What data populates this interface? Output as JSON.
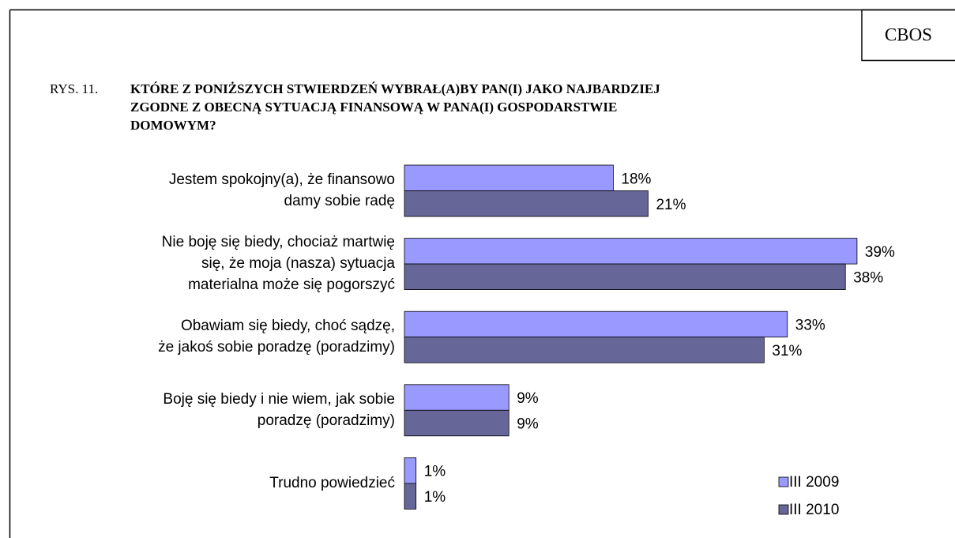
{
  "chart_data": {
    "type": "bar",
    "orientation": "horizontal",
    "source": "CBOS",
    "figure_label": "RYS. 11.",
    "title": "KTÓRE Z PONIŻSZYCH STWIERDZEŃ WYBRAŁ(A)BY PAN(I) JAKO NAJBARDZIEJ\nZGODNE Z OBECNĄ SYTUACJĄ FINANSOWĄ W PANA(I) GOSPODARSTWIE\nDOMOWYM?",
    "categories": [
      "Jestem spokojny(a), że finansowo\ndamy sobie radę",
      "Nie boję się biedy, chociaż martwię\nsię, że moja (nasza) sytuacja\nmaterialna może się pogorszyć",
      "Obawiam się biedy, choć sądzę,\nże jakoś sobie poradzę (poradzimy)",
      "Boję się biedy i nie wiem, jak sobie\nporadzę (poradzimy)",
      "Trudno powiedzieć"
    ],
    "series": [
      {
        "name": "III 2009",
        "color": "#9999ff",
        "values": [
          18,
          39,
          33,
          9,
          1
        ],
        "value_labels": [
          "18%",
          "39%",
          "33%",
          "9%",
          "1%"
        ]
      },
      {
        "name": "III 2010",
        "color": "#666699",
        "values": [
          21,
          38,
          31,
          9,
          1
        ],
        "value_labels": [
          "21%",
          "38%",
          "31%",
          "9%",
          "1%"
        ]
      }
    ],
    "legend": "bottom-right"
  }
}
